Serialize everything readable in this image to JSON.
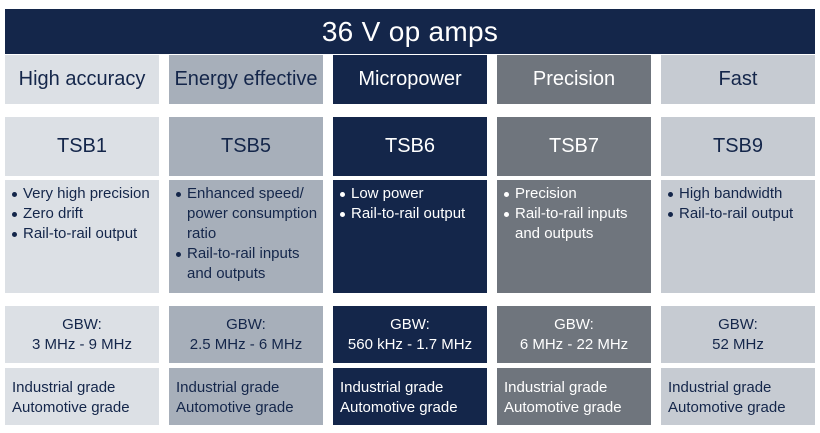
{
  "header": {
    "title": "36 V op amps"
  },
  "columns": [
    {
      "title": "High accuracy",
      "part": "TSB1",
      "features": [
        "Very high precision",
        "Zero drift",
        "Rail-to-rail output"
      ],
      "gbw_label": "GBW:",
      "gbw_value": "3 MHz - 9 MHz",
      "grades": [
        "Industrial grade",
        "Automotive grade"
      ]
    },
    {
      "title": "Energy effective",
      "part": "TSB5",
      "features": [
        "Enhanced speed/ power consumption ratio",
        "Rail-to-rail inputs and outputs"
      ],
      "gbw_label": "GBW:",
      "gbw_value": "2.5 MHz - 6 MHz",
      "grades": [
        "Industrial grade",
        "Automotive grade"
      ]
    },
    {
      "title": "Micropower",
      "part": "TSB6",
      "features": [
        "Low power",
        "Rail-to-rail output"
      ],
      "gbw_label": "GBW:",
      "gbw_value": "560 kHz - 1.7 MHz",
      "grades": [
        "Industrial grade",
        "Automotive grade"
      ]
    },
    {
      "title": "Precision",
      "part": "TSB7",
      "features": [
        "Precision",
        "Rail-to-rail inputs and outputs"
      ],
      "gbw_label": "GBW:",
      "gbw_value": "6 MHz - 22 MHz",
      "grades": [
        "Industrial grade",
        "Automotive grade"
      ]
    },
    {
      "title": "Fast",
      "part": "TSB9",
      "features": [
        "High bandwidth",
        "Rail-to-rail output"
      ],
      "gbw_label": "GBW:",
      "gbw_value": "52 MHz",
      "grades": [
        "Industrial grade",
        "Automotive grade"
      ]
    }
  ],
  "colors": {
    "navy": "#14264a",
    "light_gray": "#dce0e5",
    "mid_gray": "#a7afba",
    "dark_gray": "#6f757d",
    "pale_gray": "#c6cbd2"
  }
}
